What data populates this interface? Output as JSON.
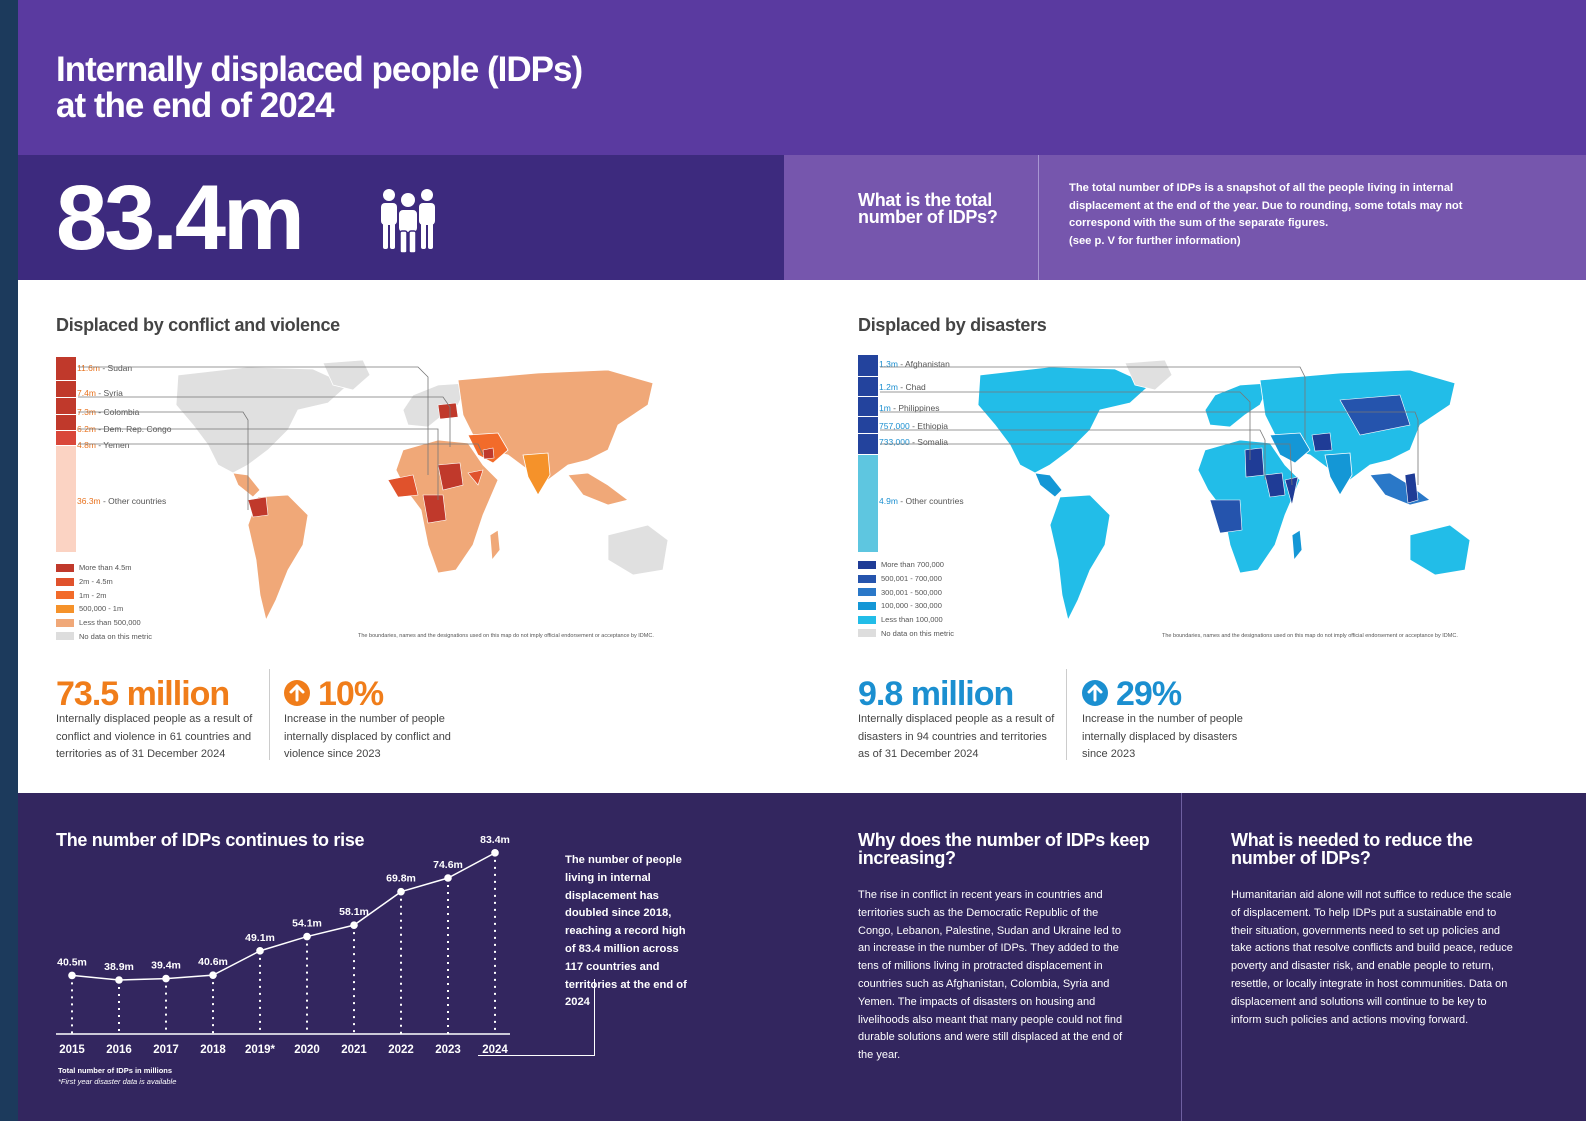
{
  "header": {
    "title_line1": "Internally displaced people (IDPs)",
    "title_line2": "at the end of 2024",
    "total": "83.4m",
    "people_icon": "people-group-icon"
  },
  "info": {
    "question": "What is the total number of IDPs?",
    "text": "The total number of IDPs is a snapshot of all the people living in internal displacement at the end of the year. Due to rounding, some totals may not correspond with the sum of the separate figures.",
    "note": "(see p. V for further information)"
  },
  "conflict": {
    "title": "Displaced by conflict and violence",
    "accent": "#f07d1a",
    "callouts": [
      {
        "value": "11.6m",
        "name": "Sudan"
      },
      {
        "value": "7.4m",
        "name": "Syria"
      },
      {
        "value": "7.3m",
        "name": "Colombia"
      },
      {
        "value": "6.2m",
        "name": "Dem. Rep. Congo"
      },
      {
        "value": "4.8m",
        "name": "Yemen"
      },
      {
        "value": "36.3m",
        "name": "Other countries"
      }
    ],
    "legend": [
      {
        "label": "More than 4.5m",
        "color": "#c0392b"
      },
      {
        "label": "2m - 4.5m",
        "color": "#e0522c"
      },
      {
        "label": "1m - 2m",
        "color": "#f26b2a"
      },
      {
        "label": "500,000 - 1m",
        "color": "#f5922a"
      },
      {
        "label": "Less than 500,000",
        "color": "#f0a878"
      },
      {
        "label": "No data on this metric",
        "color": "#dddddd"
      }
    ],
    "disclaimer": "The boundaries, names and the designations used on this map do not imply official endorsement or acceptance by IDMC.",
    "stat_value": "73.5 million",
    "stat_text": "Internally displaced people as a result of conflict and violence in 61 countries and territories as of 31 December 2024",
    "change_value": "10%",
    "change_text": "Increase in the number of people internally displaced by conflict and violence since 2023",
    "change_icon": "arrow-up-icon"
  },
  "disasters": {
    "title": "Displaced by disasters",
    "accent": "#1b8fd0",
    "callouts": [
      {
        "value": "1.3m",
        "name": "Afghanistan"
      },
      {
        "value": "1.2m",
        "name": "Chad"
      },
      {
        "value": "1m",
        "name": "Philippines"
      },
      {
        "value": "757,000",
        "name": "Ethiopia"
      },
      {
        "value": "733,000",
        "name": "Somalia"
      },
      {
        "value": "4.9m",
        "name": "Other countries"
      }
    ],
    "legend": [
      {
        "label": "More than 700,000",
        "color": "#1f3c96"
      },
      {
        "label": "500,001 - 700,000",
        "color": "#2554ad"
      },
      {
        "label": "300,001 - 500,000",
        "color": "#2a78c8"
      },
      {
        "label": "100,000 - 300,000",
        "color": "#1497d6"
      },
      {
        "label": "Less than 100,000",
        "color": "#22bde8"
      },
      {
        "label": "No data on this metric",
        "color": "#dddddd"
      }
    ],
    "disclaimer": "The boundaries, names and the designations used on this map do not imply official endorsement or acceptance by IDMC.",
    "stat_value": "9.8 million",
    "stat_text": "Internally displaced people as a result of disasters in 94 countries and territories as of 31 December 2024",
    "change_value": "29%",
    "change_text": "Increase in the number of people internally displaced by disasters since 2023",
    "change_icon": "arrow-up-icon"
  },
  "trend": {
    "title": "The number of IDPs continues to rise",
    "note": "The number of people living in internal displacement has doubled since 2018, reaching a record high of 83.4 million across 117 countries and territories at the end of 2024",
    "footnote1": "Total number of IDPs in millions",
    "footnote2": "*First year disaster data is available"
  },
  "chart_data": {
    "type": "line",
    "title": "The number of IDPs continues to rise",
    "xlabel": "",
    "ylabel": "Total number of IDPs in millions",
    "categories": [
      "2015",
      "2016",
      "2017",
      "2018",
      "2019*",
      "2020",
      "2021",
      "2022",
      "2023",
      "2024"
    ],
    "values": [
      40.5,
      38.9,
      39.4,
      40.6,
      49.1,
      54.1,
      58.1,
      69.8,
      74.6,
      83.4
    ],
    "labels": [
      "40.5m",
      "38.9m",
      "39.4m",
      "40.6m",
      "49.1m",
      "54.1m",
      "58.1m",
      "69.8m",
      "74.6m",
      "83.4m"
    ],
    "ylim": [
      0,
      90
    ],
    "grid": false,
    "color": "#ffffff"
  },
  "why": {
    "title": "Why does the number of IDPs keep increasing?",
    "text": "The rise in conflict in recent years in countries and territories such as the Democratic Republic of the Congo, Lebanon, Palestine, Sudan and Ukraine led to an increase in the number of IDPs. They added to the tens of millions living in protracted displacement in countries such as Afghanistan, Colombia, Syria and Yemen. The impacts of disasters on housing and livelihoods also meant that many people could not find durable solutions and were still displaced at the end of the year."
  },
  "needed": {
    "title": "What is needed to reduce the number of IDPs?",
    "text": "Humanitarian aid alone will not suffice to reduce the scale of displacement. To help IDPs put a sustainable end to their situation, governments need to set up policies and take actions that resolve conflicts and build peace, reduce poverty and disaster risk, and enable people to return, resettle, or locally integrate in host communities. Data on displacement and solutions will continue to be key to inform such policies and actions moving forward."
  }
}
